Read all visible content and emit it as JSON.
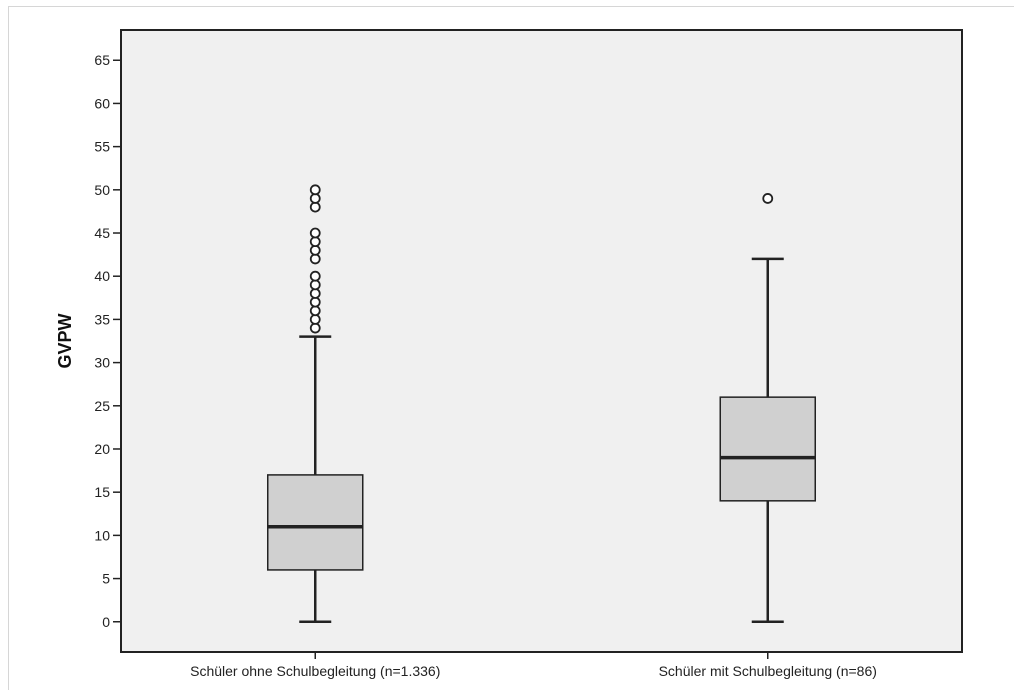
{
  "chart_data": {
    "type": "boxplot",
    "title": "",
    "xlabel": "",
    "ylabel": "GVPW",
    "ylim": [
      -3.5,
      68.5
    ],
    "yticks": [
      0,
      5,
      10,
      15,
      20,
      25,
      30,
      35,
      40,
      45,
      50,
      55,
      60,
      65
    ],
    "grid": false,
    "plot_background": "#f0f0f0",
    "box_fill": "#d0d0d0",
    "line_color": "#222222",
    "categories": [
      "Schüler ohne Schulbegleitung (n=1.336)",
      "Schüler mit Schulbegleitung (n=86)"
    ],
    "boxes": [
      {
        "category": "Schüler ohne Schulbegleitung (n=1.336)",
        "whisker_low": 0,
        "q1": 6,
        "median": 11,
        "q3": 17,
        "whisker_high": 33,
        "outliers": [
          34,
          35,
          36,
          37,
          38,
          39,
          40,
          42,
          43,
          44,
          45,
          48,
          49,
          50
        ]
      },
      {
        "category": "Schüler mit Schulbegleitung (n=86)",
        "whisker_low": 0,
        "q1": 14,
        "median": 19,
        "q3": 26,
        "whisker_high": 42,
        "outliers": [
          49
        ]
      }
    ]
  }
}
